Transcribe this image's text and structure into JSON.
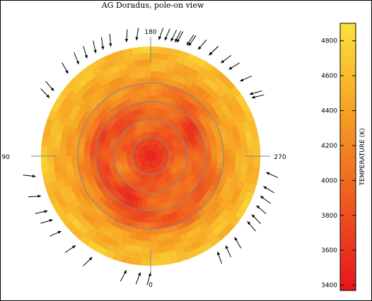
{
  "chart_data": {
    "type": "heatmap",
    "title": "AG Doradus, pole-on view",
    "projection": "polar",
    "angle_labels": [
      "180",
      "270",
      "0",
      "90"
    ],
    "colorbar": {
      "label": "TEMPERATURE (K)",
      "range": [
        3370,
        4900
      ],
      "ticks": [
        3400,
        3600,
        3800,
        4000,
        4200,
        4400,
        4600,
        4800
      ],
      "colormap": [
        "#e8141e",
        "#ee5a1f",
        "#f7a023",
        "#fbe23a"
      ]
    },
    "latitude_circles_deg": [
      75,
      60,
      45,
      30
    ],
    "pole_temperature": 3420,
    "edge_temperature": 4650,
    "spots": [
      {
        "lon": 70,
        "colat": 45,
        "temp": 3900
      },
      {
        "lon": 110,
        "colat": 42,
        "temp": 3950
      },
      {
        "lon": 150,
        "colat": 38,
        "temp": 3800
      },
      {
        "lon": 165,
        "colat": 52,
        "temp": 3850
      },
      {
        "lon": 205,
        "colat": 55,
        "temp": 3900
      },
      {
        "lon": 245,
        "colat": 50,
        "temp": 3950
      },
      {
        "lon": 300,
        "colat": 40,
        "temp": 3800
      },
      {
        "lon": 320,
        "colat": 55,
        "temp": 3900
      },
      {
        "lon": 35,
        "colat": 35,
        "temp": 3950
      }
    ],
    "bright_patches": [
      {
        "lon": 20,
        "colat": 24,
        "temp": 4500
      },
      {
        "lon": 115,
        "colat": 24,
        "temp": 4550
      },
      {
        "lon": 250,
        "colat": 22,
        "temp": 4450
      },
      {
        "lon": 300,
        "colat": 55,
        "temp": 4400
      }
    ],
    "observation_phases_deg": [
      7,
      12,
      348,
      342,
      330,
      350,
      353,
      300,
      302,
      310,
      318,
      323,
      330,
      336,
      341,
      347,
      356,
      215,
      220,
      226,
      236,
      240,
      245,
      250,
      255,
      262,
      180,
      175,
      168,
      150,
      140,
      130,
      123,
      118,
      110,
      100,
      60,
      56,
      45,
      38,
      33,
      28,
      24,
      20
    ]
  }
}
